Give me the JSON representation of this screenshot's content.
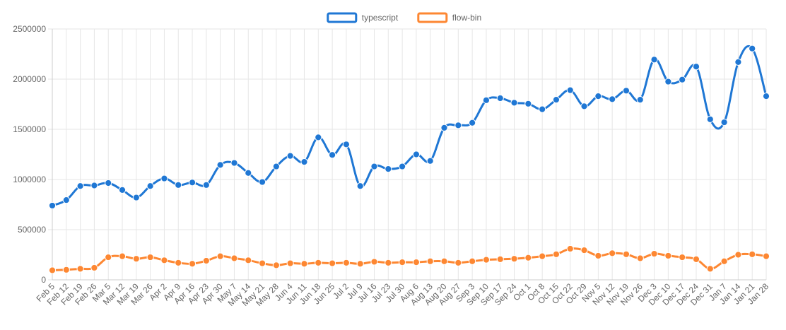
{
  "chart_data": {
    "type": "line",
    "legend_position": "top",
    "grid": true,
    "ylim": [
      0,
      2500000
    ],
    "y_ticks": [
      0,
      500000,
      1000000,
      1500000,
      2000000,
      2500000
    ],
    "y_tick_labels": [
      "0",
      "500000",
      "1000000",
      "1500000",
      "2000000",
      "2500000"
    ],
    "categories": [
      "Feb 5",
      "Feb 12",
      "Feb 19",
      "Feb 26",
      "Mar 5",
      "Mar 12",
      "Mar 19",
      "Mar 26",
      "Apr 2",
      "Apr 9",
      "Apr 16",
      "Apr 23",
      "Apr 30",
      "May 7",
      "May 14",
      "May 21",
      "May 28",
      "Jun 4",
      "Jun 11",
      "Jun 18",
      "Jun 25",
      "Jul 2",
      "Jul 9",
      "Jul 16",
      "Jul 23",
      "Jul 30",
      "Aug 6",
      "Aug 13",
      "Aug 20",
      "Aug 27",
      "Sep 3",
      "Sep 10",
      "Sep 17",
      "Sep 24",
      "Oct 1",
      "Oct 8",
      "Oct 15",
      "Oct 22",
      "Oct 29",
      "Nov 5",
      "Nov 12",
      "Nov 19",
      "Nov 26",
      "Dec 3",
      "Dec 10",
      "Dec 17",
      "Dec 24",
      "Dec 31",
      "Jan 7",
      "Jan 14",
      "Jan 21",
      "Jan 28"
    ],
    "series": [
      {
        "name": "typescript",
        "color": "#1f77d4",
        "values": [
          740000,
          795000,
          935000,
          940000,
          965000,
          895000,
          820000,
          935000,
          1010000,
          945000,
          970000,
          945000,
          1145000,
          1165000,
          1065000,
          975000,
          1130000,
          1235000,
          1175000,
          1420000,
          1245000,
          1350000,
          935000,
          1130000,
          1105000,
          1130000,
          1250000,
          1185000,
          1515000,
          1540000,
          1565000,
          1790000,
          1810000,
          1765000,
          1755000,
          1700000,
          1795000,
          1890000,
          1730000,
          1830000,
          1800000,
          1885000,
          1795000,
          2195000,
          1975000,
          1995000,
          2125000,
          1600000,
          1570000,
          2170000,
          2305000,
          1830000
        ]
      },
      {
        "name": "flow-bin",
        "color": "#fd8732",
        "values": [
          95000,
          100000,
          110000,
          120000,
          225000,
          235000,
          210000,
          225000,
          195000,
          170000,
          160000,
          190000,
          235000,
          215000,
          195000,
          165000,
          145000,
          165000,
          160000,
          170000,
          165000,
          170000,
          160000,
          180000,
          170000,
          175000,
          175000,
          185000,
          185000,
          170000,
          185000,
          200000,
          205000,
          210000,
          220000,
          235000,
          255000,
          310000,
          295000,
          240000,
          265000,
          255000,
          215000,
          260000,
          240000,
          225000,
          205000,
          110000,
          185000,
          250000,
          255000,
          235000
        ]
      }
    ]
  }
}
